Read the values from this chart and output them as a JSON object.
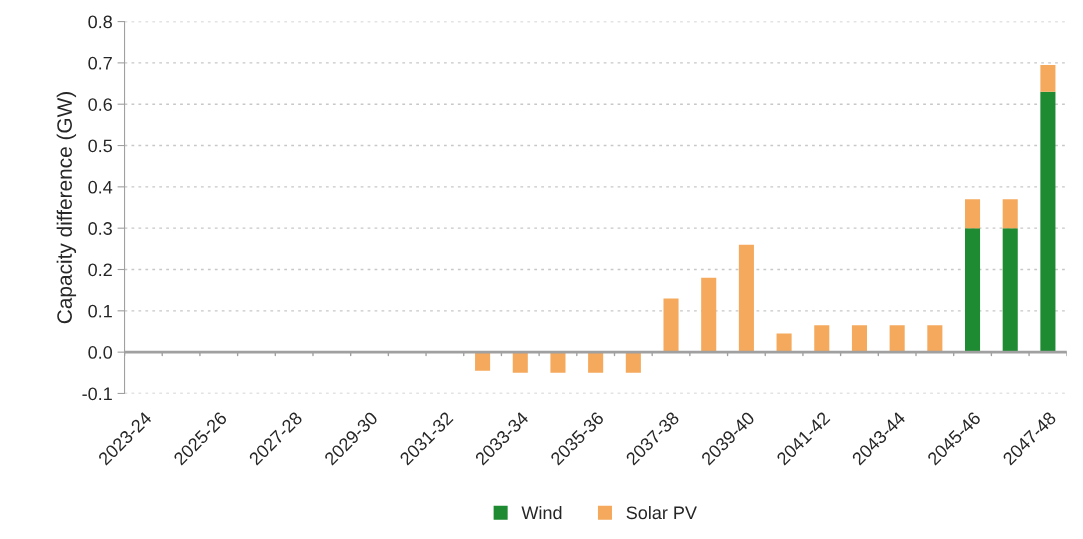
{
  "chart_data": {
    "type": "bar",
    "stacked": true,
    "ylabel": "Capacity difference (GW)",
    "categories": [
      "2023-24",
      null,
      "2025-26",
      null,
      "2027-28",
      null,
      "2029-30",
      null,
      "2031-32",
      null,
      "2033-34",
      null,
      "2035-36",
      null,
      "2037-38",
      null,
      "2039-40",
      null,
      "2041-42",
      null,
      "2043-44",
      null,
      "2045-46",
      null,
      "2047-48"
    ],
    "series": [
      {
        "name": "Wind",
        "color": "#1e8a32",
        "values": [
          0,
          0,
          0,
          0,
          0,
          0,
          0,
          0,
          0,
          0,
          0,
          0,
          0,
          0,
          0,
          0,
          0,
          0,
          0,
          0,
          0,
          0,
          0.3,
          0.3,
          0.63
        ]
      },
      {
        "name": "Solar PV",
        "color": "#f5a95c",
        "values": [
          0,
          0,
          0,
          0,
          0,
          0,
          0,
          0,
          0,
          -0.045,
          -0.05,
          -0.05,
          -0.05,
          -0.05,
          0.13,
          0.18,
          0.26,
          0.045,
          0.065,
          0.065,
          0.065,
          0.065,
          0.07,
          0.07,
          0.065
        ]
      }
    ],
    "ylim": [
      -0.1,
      0.8
    ],
    "yticks": [
      {
        "value": -0.1,
        "label": "-0.1"
      },
      {
        "value": 0,
        "label": "0.0"
      },
      {
        "value": 0.1,
        "label": "0.1"
      },
      {
        "value": 0.2,
        "label": "0.2"
      },
      {
        "value": 0.3,
        "label": "0.3"
      },
      {
        "value": 0.4,
        "label": "0.4"
      },
      {
        "value": 0.5,
        "label": "0.5"
      },
      {
        "value": 0.6,
        "label": "0.6"
      },
      {
        "value": 0.7,
        "label": "0.7"
      },
      {
        "value": 0.8,
        "label": "0.8"
      }
    ],
    "ref_lines": [
      {
        "axis": "y",
        "value": 0,
        "color": "#a0a0a0"
      }
    ],
    "grid": "y",
    "legend": "bottom"
  }
}
